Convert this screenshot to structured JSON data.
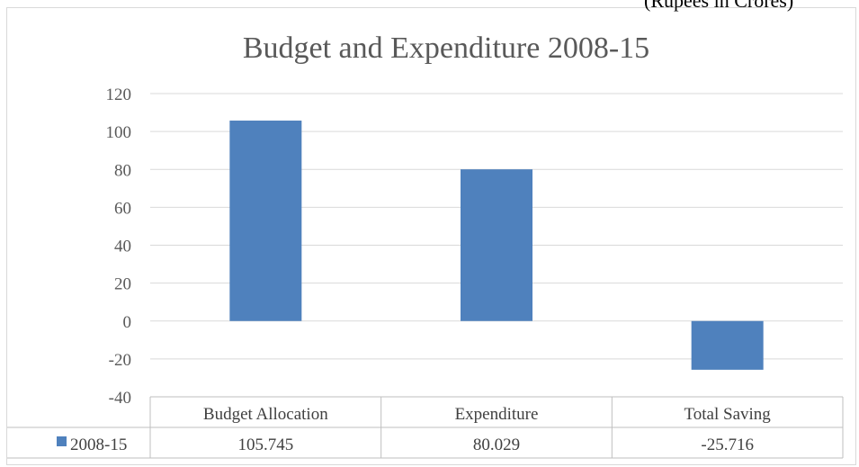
{
  "header_fragment": "(Rupees in Crores)",
  "chart_data": {
    "type": "bar",
    "title": "Budget and Expenditure 2008-15",
    "categories": [
      "Budget Allocation",
      "Expenditure",
      "Total Saving"
    ],
    "series": [
      {
        "name": "2008-15",
        "values": [
          105.745,
          80.029,
          -25.716
        ],
        "value_labels": [
          "105.745",
          "80.029",
          "-25.716"
        ]
      }
    ],
    "y_ticks": [
      "120",
      "100",
      "80",
      "60",
      "40",
      "20",
      "0",
      "-20",
      "-40"
    ],
    "ylim": [
      -40,
      120
    ],
    "grid": true,
    "legend": "data-table",
    "data_table": true,
    "colors": {
      "bar": "#4f81bd",
      "grid": "#d9d9d9",
      "text": "#595959"
    }
  }
}
